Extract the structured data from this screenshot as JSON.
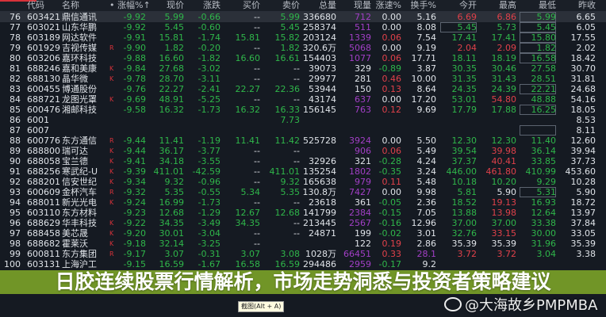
{
  "header": [
    "",
    "代码",
    "名称",
    "•",
    "涨幅%↑",
    "现价",
    "涨跌",
    "买价",
    "卖价",
    "总量",
    "现量",
    "涨速%",
    "换手%",
    "今开",
    "最高",
    "最低",
    "昨收"
  ],
  "rows": [
    {
      "v": [
        "76",
        "603421",
        "鼎信通讯",
        "",
        "-9.92",
        "5.99",
        "-0.66",
        "--",
        "5.99",
        "336680",
        "712",
        "0.00",
        "5.16",
        "6.69",
        "6.86",
        "5.99",
        "6.65"
      ],
      "cur": "p",
      "box": [
        15
      ],
      "sel": true
    },
    {
      "v": [
        "77",
        "603021",
        "山东华鹏",
        "",
        "-9.92",
        "5.45",
        "-0.60",
        "--",
        "5.45",
        "258374",
        "511",
        "0.00",
        "8.08",
        "5.45",
        "5.73",
        "5.45",
        "6.05"
      ],
      "cur": "p",
      "box": [
        13,
        15
      ]
    },
    {
      "v": [
        "78",
        "603189",
        "网达软件",
        "",
        "-9.91",
        "15.81",
        "-1.74",
        "15.81",
        "15.82",
        "203124",
        "1339",
        "0.06",
        "7.54",
        "17.41",
        "17.41",
        "15.80",
        "17.55"
      ],
      "cur": "p",
      "box": [
        15
      ]
    },
    {
      "v": [
        "79",
        "601929",
        "吉视传媒",
        "R",
        "-9.90",
        "1.82",
        "-0.20",
        "--",
        "1.82",
        "320.6万",
        "5068",
        "0.00",
        "9.19",
        "2.04",
        "2.09",
        "1.82",
        "2.02"
      ],
      "cur": "p",
      "box": [
        15
      ]
    },
    {
      "v": [
        "80",
        "603206",
        "嘉环科技",
        "",
        "-9.88",
        "16.60",
        "-1.82",
        "16.60",
        "16.61",
        "154403",
        "1077",
        "0.06",
        "17.71",
        "18.11",
        "18.19",
        "16.58",
        "18.42"
      ],
      "cur": "p",
      "box": [
        15
      ]
    },
    {
      "v": [
        "81",
        "688246",
        "嘉和美康",
        "K",
        "-9.84",
        "27.68",
        "-3.02",
        "--",
        "--",
        "39073",
        "329",
        "-0.89",
        "3.87",
        "30.35",
        "30.46",
        "27.58",
        "30.70"
      ],
      "cur": "w"
    },
    {
      "v": [
        "82",
        "688130",
        "晶华微",
        "K",
        "-9.78",
        "28.70",
        "-3.11",
        "--",
        "--",
        "29977",
        "281",
        "0.46",
        "10.00",
        "31.35",
        "31.43",
        "28.51",
        "31.81"
      ],
      "cur": "w"
    },
    {
      "v": [
        "83",
        "600455",
        "博通股份",
        "",
        "-9.76",
        "22.27",
        "-2.41",
        "22.27",
        "22.36",
        "53944",
        "150",
        "0.13",
        "8.64",
        "24.35",
        "24.39",
        "22.21",
        "24.68"
      ],
      "cur": "w",
      "box": [
        15
      ]
    },
    {
      "v": [
        "84",
        "688721",
        "龙图光罩",
        "K",
        "-9.69",
        "48.91",
        "-5.25",
        "--",
        "--",
        "43174",
        "637",
        "0.00",
        "17.20",
        "53.01",
        "54.80",
        "48.88",
        "54.16"
      ],
      "cur": "p"
    },
    {
      "v": [
        "85",
        "600476",
        "湘邮科技",
        "",
        "-9.58",
        "16.32",
        "-1.73",
        "16.32",
        "16.33",
        "156145",
        "763",
        "0.12",
        "9.69",
        "17.79",
        "17.88",
        "16.25",
        "18.05"
      ],
      "cur": "p",
      "box": [
        15
      ]
    },
    {
      "v": [
        "86",
        "6001",
        "",
        "",
        "",
        "",
        "",
        "",
        "7.73",
        "",
        "",
        "",
        "",
        "",
        "",
        "",
        "8.53"
      ],
      "cur": "p"
    },
    {
      "v": [
        "87",
        "6007",
        "",
        "",
        "",
        "",
        "",
        "",
        "",
        "",
        "",
        "",
        "",
        "",
        "",
        "",
        "8.11"
      ],
      "cur": "p",
      "box": [
        15
      ]
    },
    {
      "v": [
        "88",
        "600776",
        "东方通信",
        "R",
        "-9.44",
        "11.41",
        "-1.19",
        "11.41",
        "11.42",
        "525728",
        "3924",
        "0.00",
        "5.50",
        "12.30",
        "12.30",
        "11.40",
        "12.60"
      ],
      "cur": "p"
    },
    {
      "v": [
        "89",
        "688800",
        "瑞可达",
        "K",
        "-9.44",
        "36.17",
        "-3.77",
        "--",
        "--",
        "",
        "906",
        "0.06",
        "5.49",
        "39.54",
        "39.98",
        "36.14",
        "39.94"
      ],
      "cur": "p"
    },
    {
      "v": [
        "90",
        "688058",
        "宝兰德",
        "K",
        "-9.41",
        "34.18",
        "-3.55",
        "--",
        "--",
        "32926",
        "321",
        "-0.28",
        "4.24",
        "37.37",
        "40.41",
        "33.85",
        "37.73"
      ],
      "cur": "w"
    },
    {
      "v": [
        "91",
        "688256",
        "寒武纪-U",
        "K",
        "-9.39",
        "411.01",
        "-42.59",
        "--",
        "411.01",
        "135254",
        "1802",
        "-0.35",
        "3.24",
        "446.00",
        "461.80",
        "410.99",
        "453.60"
      ],
      "cur": "p"
    },
    {
      "v": [
        "92",
        "688201",
        "信安世纪",
        "K",
        "-9.34",
        "9.32",
        "-0.96",
        "--",
        "9.32",
        "165638",
        "979",
        "0.11",
        "5.48",
        "10.18",
        "10.20",
        "9.29",
        "10.28"
      ],
      "cur": "p"
    },
    {
      "v": [
        "93",
        "600609",
        "金杯汽车",
        "R",
        "-9.32",
        "5.35",
        "-0.55",
        "5.34",
        "5.35",
        "130.8万",
        "7427",
        "0.00",
        "9.98",
        "5.81",
        "5.90",
        "5.31",
        "5.90"
      ],
      "cur": "p",
      "box": [
        15
      ]
    },
    {
      "v": [
        "94",
        "688011",
        "新光光电",
        "K",
        "-9.24",
        "16.99",
        "-1.73",
        "--",
        "--",
        "23618",
        "361",
        "-0.05",
        "2.36",
        "18.52",
        "19.13",
        "16.93",
        "18.72"
      ],
      "cur": "w"
    },
    {
      "v": [
        "95",
        "603110",
        "东方材料",
        "",
        "-9.23",
        "12.68",
        "-1.29",
        "12.67",
        "12.68",
        "141799",
        "2384",
        "-0.15",
        "7.05",
        "13.88",
        "13.98",
        "12.64",
        "13.97"
      ],
      "cur": "p"
    },
    {
      "v": [
        "96",
        "688629",
        "华丰科技",
        "K",
        "-9.22",
        "34.35",
        "-3.49",
        "34.35",
        "--",
        "213445",
        "2567",
        "-0.16",
        "12.96",
        "37.00",
        "37.00",
        "33.38",
        "37.84"
      ],
      "cur": "p"
    },
    {
      "v": [
        "97",
        "688458",
        "美芯晟",
        "K",
        "-9.20",
        "30.01",
        "-3.04",
        "--",
        "--",
        "24871",
        "199",
        "-0.02",
        "3.01",
        "32.76",
        "33.15",
        "30.00",
        "33.05"
      ],
      "cur": "w"
    },
    {
      "v": [
        "98",
        "688682",
        "霍莱沃",
        "K",
        "-9.18",
        "32.14",
        "-3.25",
        "--",
        "",
        "",
        "122",
        "0.19",
        "2.86",
        "35.39",
        "35.39",
        "31.96",
        "35.39"
      ],
      "cur": "w"
    },
    {
      "v": [
        "99",
        "600811",
        "东方集团",
        "R",
        "-9.17",
        "3.07",
        "-0.31",
        "3.07",
        "3.08",
        "1028万",
        "66451",
        "0.33",
        "28.1",
        "3.72",
        "3.72",
        "3.04",
        "3.38"
      ],
      "cur": "p",
      "turn": "p"
    },
    {
      "v": [
        "100",
        "603131",
        "上海沪工",
        "",
        "-9.15",
        "16.59",
        "-1.67",
        "16.58",
        "16.59",
        "294486",
        "2959",
        "-0.17",
        "9.2",
        "",
        "",
        "",
        ""
      ],
      "cur": "p"
    }
  ],
  "overlay": {
    "title_line1": "日胶连续股票行情解析，市场走势洞悉与投资者策",
    "title_line2": "略建议"
  },
  "tooltip": "截图(Alt + A)",
  "watermark": "@大海故乡PMPMBA",
  "colors": {
    "up": "#e0414a",
    "down": "#2fb64a",
    "volume": "#a23fc6",
    "overlay": "#7aa028"
  }
}
